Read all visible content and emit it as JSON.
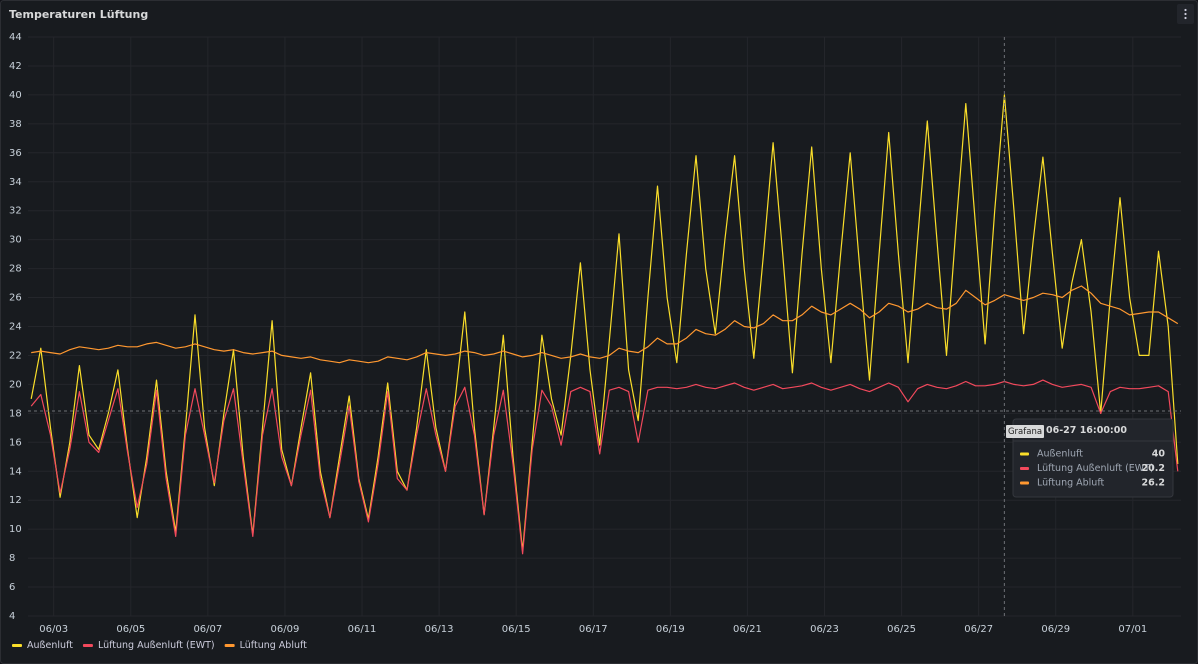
{
  "chart_data": {
    "type": "line",
    "title": "Temperaturen Lüftung",
    "x": [
      "06-02 10:00:00",
      "06-02 16:00:00",
      "06-02 22:00:00",
      "06-03 04:00:00",
      "06-03 10:00:00",
      "06-03 16:00:00",
      "06-03 22:00:00",
      "06-04 04:00:00",
      "06-04 10:00:00",
      "06-04 16:00:00",
      "06-04 22:00:00",
      "06-05 04:00:00",
      "06-05 10:00:00",
      "06-05 16:00:00",
      "06-05 22:00:00",
      "06-06 04:00:00",
      "06-06 10:00:00",
      "06-06 16:00:00",
      "06-06 22:00:00",
      "06-07 04:00:00",
      "06-07 10:00:00",
      "06-07 16:00:00",
      "06-07 22:00:00",
      "06-08 04:00:00",
      "06-08 10:00:00",
      "06-08 16:00:00",
      "06-08 22:00:00",
      "06-09 04:00:00",
      "06-09 10:00:00",
      "06-09 16:00:00",
      "06-09 22:00:00",
      "06-10 04:00:00",
      "06-10 10:00:00",
      "06-10 16:00:00",
      "06-10 22:00:00",
      "06-11 04:00:00",
      "06-11 10:00:00",
      "06-11 16:00:00",
      "06-11 22:00:00",
      "06-12 04:00:00",
      "06-12 10:00:00",
      "06-12 16:00:00",
      "06-12 22:00:00",
      "06-13 04:00:00",
      "06-13 10:00:00",
      "06-13 16:00:00",
      "06-13 22:00:00",
      "06-14 04:00:00",
      "06-14 10:00:00",
      "06-14 16:00:00",
      "06-14 22:00:00",
      "06-15 04:00:00",
      "06-15 10:00:00",
      "06-15 16:00:00",
      "06-15 22:00:00",
      "06-16 04:00:00",
      "06-16 10:00:00",
      "06-16 16:00:00",
      "06-16 22:00:00",
      "06-17 04:00:00",
      "06-17 10:00:00",
      "06-17 16:00:00",
      "06-17 22:00:00",
      "06-18 04:00:00",
      "06-18 10:00:00",
      "06-18 16:00:00",
      "06-18 22:00:00",
      "06-19 04:00:00",
      "06-19 10:00:00",
      "06-19 16:00:00",
      "06-19 22:00:00",
      "06-20 04:00:00",
      "06-20 10:00:00",
      "06-20 16:00:00",
      "06-20 22:00:00",
      "06-21 04:00:00",
      "06-21 10:00:00",
      "06-21 16:00:00",
      "06-21 22:00:00",
      "06-22 04:00:00",
      "06-22 10:00:00",
      "06-22 16:00:00",
      "06-22 22:00:00",
      "06-23 04:00:00",
      "06-23 10:00:00",
      "06-23 16:00:00",
      "06-23 22:00:00",
      "06-24 04:00:00",
      "06-24 10:00:00",
      "06-24 16:00:00",
      "06-24 22:00:00",
      "06-25 04:00:00",
      "06-25 10:00:00",
      "06-25 16:00:00",
      "06-25 22:00:00",
      "06-26 04:00:00",
      "06-26 10:00:00",
      "06-26 16:00:00",
      "06-26 22:00:00",
      "06-27 04:00:00",
      "06-27 10:00:00",
      "06-27 16:00:00",
      "06-27 22:00:00",
      "06-28 04:00:00",
      "06-28 10:00:00",
      "06-28 16:00:00",
      "06-28 22:00:00",
      "06-29 04:00:00",
      "06-29 10:00:00",
      "06-29 16:00:00",
      "06-29 22:00:00",
      "06-30 04:00:00",
      "06-30 10:00:00",
      "06-30 16:00:00",
      "06-30 22:00:00",
      "07-01 04:00:00",
      "07-01 10:00:00",
      "07-01 16:00:00",
      "07-01 22:00:00",
      "07-02 04:00:00"
    ],
    "series": [
      {
        "name": "Außenluft",
        "color": "#fade2a",
        "values": [
          19,
          22.5,
          17,
          12.2,
          16,
          21.3,
          16.5,
          15.5,
          18,
          21,
          15.5,
          10.8,
          15,
          20.3,
          14,
          9.8,
          17,
          24.8,
          17,
          13,
          18,
          22.4,
          15,
          9.6,
          17,
          24.4,
          15.5,
          13,
          17,
          20.8,
          14,
          10.8,
          15,
          19.2,
          13.5,
          10.7,
          15,
          20.1,
          14,
          12.7,
          17,
          22.4,
          17,
          14,
          19,
          25,
          17,
          11,
          17,
          23.4,
          15,
          8.5,
          16,
          23.4,
          19,
          16.5,
          22,
          28.4,
          21,
          15.8,
          23,
          30.4,
          21,
          17.5,
          26,
          33.7,
          26,
          21.5,
          29,
          35.8,
          28,
          23.5,
          30,
          35.8,
          28,
          21.8,
          29,
          36.7,
          29,
          20.8,
          29,
          36.4,
          28,
          21.5,
          29,
          36,
          28,
          20.3,
          29,
          37.4,
          29,
          21.5,
          30,
          38.2,
          30,
          22,
          31,
          39.4,
          31,
          22.8,
          32,
          40,
          32,
          23.5,
          30,
          35.7,
          29,
          22.5,
          27,
          30,
          25,
          18,
          26,
          32.9,
          26,
          22,
          22,
          29.2,
          24,
          14.5
        ]
      },
      {
        "name": "Lüftung Außenluft (EWT)",
        "color": "#f2495c",
        "values": [
          18.5,
          19.3,
          16.5,
          12.5,
          15.5,
          19.5,
          16,
          15.3,
          17.5,
          19.7,
          15.3,
          11.5,
          14.5,
          19.6,
          13.5,
          9.5,
          16.5,
          19.7,
          16.5,
          13.2,
          17.5,
          19.7,
          14.5,
          9.5,
          16.5,
          19.7,
          15,
          13,
          16.5,
          19.6,
          13.5,
          10.8,
          14.5,
          18.5,
          13.3,
          10.5,
          14.5,
          19.5,
          13.5,
          12.7,
          16.5,
          19.7,
          16.5,
          14,
          18.5,
          19.8,
          16.5,
          11,
          16.5,
          19.6,
          14.5,
          8.3,
          15.5,
          19.6,
          18.5,
          15.8,
          19.5,
          19.8,
          19.5,
          15.2,
          19.6,
          19.8,
          19.5,
          16,
          19.6,
          19.8,
          19.8,
          19.7,
          19.8,
          20,
          19.8,
          19.7,
          19.9,
          20.1,
          19.8,
          19.6,
          19.8,
          20,
          19.7,
          19.8,
          19.9,
          20.1,
          19.8,
          19.6,
          19.8,
          20,
          19.7,
          19.5,
          19.8,
          20.1,
          19.8,
          18.8,
          19.7,
          20,
          19.8,
          19.7,
          19.9,
          20.2,
          19.9,
          19.9,
          20,
          20.2,
          20,
          19.9,
          20,
          20.3,
          20,
          19.8,
          19.9,
          20,
          19.8,
          18,
          19.5,
          19.8,
          19.7,
          19.7,
          19.8,
          19.9,
          19.5,
          14
        ]
      },
      {
        "name": "Lüftung Abluft",
        "color": "#ff9830",
        "values": [
          22.2,
          22.3,
          22.2,
          22.1,
          22.4,
          22.6,
          22.5,
          22.4,
          22.5,
          22.7,
          22.6,
          22.6,
          22.8,
          22.9,
          22.7,
          22.5,
          22.6,
          22.8,
          22.6,
          22.4,
          22.3,
          22.4,
          22.2,
          22.1,
          22.2,
          22.3,
          22.0,
          21.9,
          21.8,
          21.9,
          21.7,
          21.6,
          21.5,
          21.7,
          21.6,
          21.5,
          21.6,
          21.9,
          21.8,
          21.7,
          21.9,
          22.2,
          22.1,
          22.0,
          22.1,
          22.3,
          22.2,
          22.0,
          22.1,
          22.3,
          22.1,
          21.9,
          22.0,
          22.2,
          22.0,
          21.8,
          21.9,
          22.1,
          21.9,
          21.8,
          22.0,
          22.5,
          22.3,
          22.2,
          22.6,
          23.2,
          22.8,
          22.8,
          23.2,
          23.8,
          23.5,
          23.4,
          23.8,
          24.4,
          24.0,
          23.9,
          24.2,
          24.8,
          24.4,
          24.4,
          24.8,
          25.4,
          25.0,
          24.8,
          25.2,
          25.6,
          25.2,
          24.6,
          25.0,
          25.6,
          25.4,
          25.0,
          25.2,
          25.6,
          25.3,
          25.2,
          25.6,
          26.5,
          26.0,
          25.5,
          25.8,
          26.2,
          26.0,
          25.8,
          26.0,
          26.3,
          26.2,
          26.0,
          26.5,
          26.8,
          26.3,
          25.6,
          25.4,
          25.2,
          24.8,
          24.9,
          25.0,
          25.0,
          24.6,
          24.2
        ]
      }
    ],
    "xlim": [
      "06-02 08:00:00",
      "07-02 06:00:00"
    ],
    "xticks": [
      {
        "value": "06-03 00:00:00",
        "label": "06/03"
      },
      {
        "value": "06-05 00:00:00",
        "label": "06/05"
      },
      {
        "value": "06-07 00:00:00",
        "label": "06/07"
      },
      {
        "value": "06-09 00:00:00",
        "label": "06/09"
      },
      {
        "value": "06-11 00:00:00",
        "label": "06/11"
      },
      {
        "value": "06-13 00:00:00",
        "label": "06/13"
      },
      {
        "value": "06-15 00:00:00",
        "label": "06/15"
      },
      {
        "value": "06-17 00:00:00",
        "label": "06/17"
      },
      {
        "value": "06-19 00:00:00",
        "label": "06/19"
      },
      {
        "value": "06-21 00:00:00",
        "label": "06/21"
      },
      {
        "value": "06-23 00:00:00",
        "label": "06/23"
      },
      {
        "value": "06-25 00:00:00",
        "label": "06/25"
      },
      {
        "value": "06-27 00:00:00",
        "label": "06/27"
      },
      {
        "value": "06-29 00:00:00",
        "label": "06/29"
      },
      {
        "value": "07-01 00:00:00",
        "label": "07/01"
      }
    ],
    "ylim": [
      4,
      44
    ],
    "yticks": [
      4,
      6,
      8,
      10,
      12,
      14,
      16,
      18,
      20,
      22,
      24,
      26,
      28,
      30,
      32,
      34,
      36,
      38,
      40,
      42,
      44
    ],
    "grid": true,
    "legend": "bottom",
    "tooltip": {
      "x": "06-27 16:00:00",
      "badge": "Grafana"
    }
  }
}
